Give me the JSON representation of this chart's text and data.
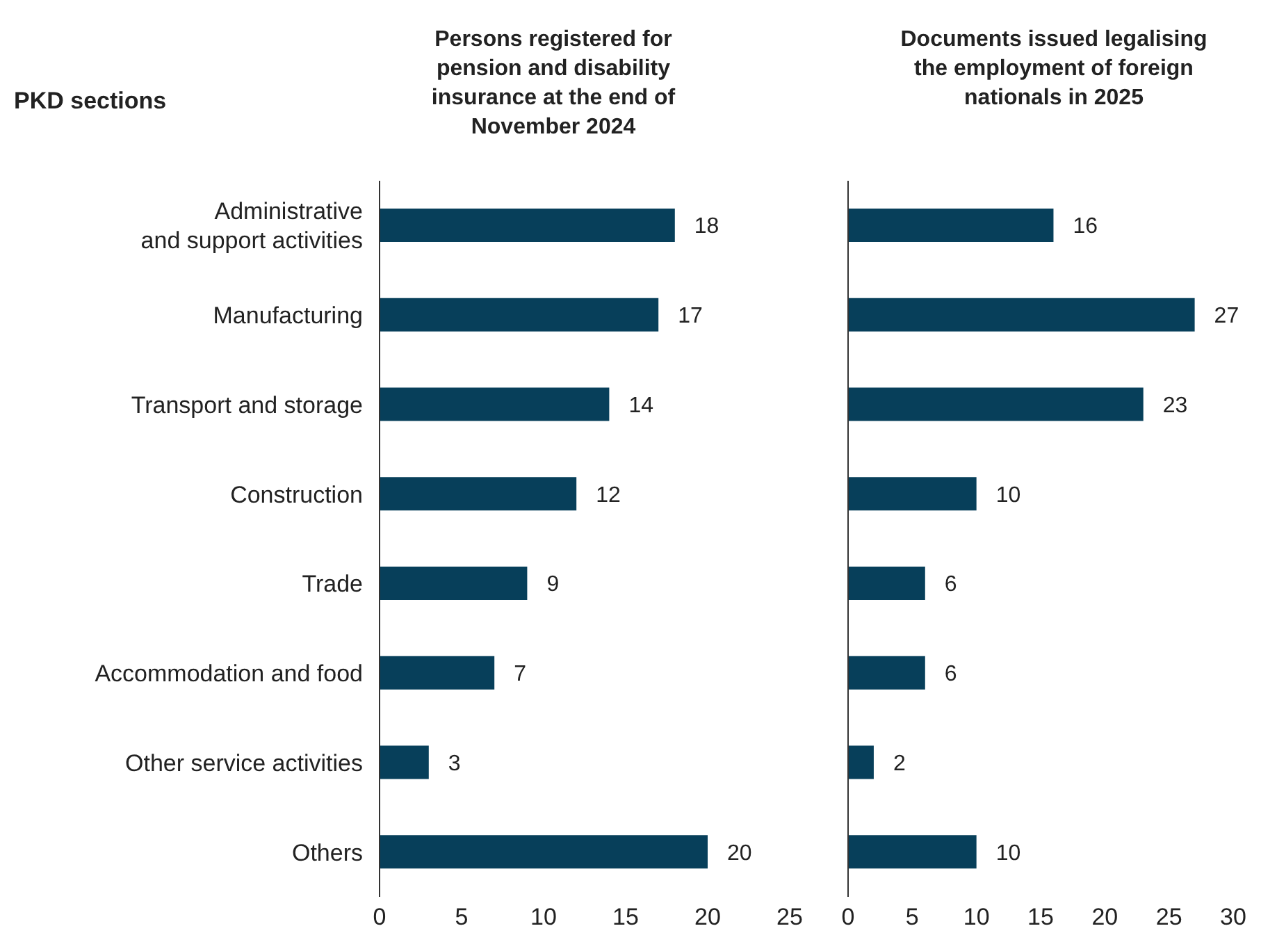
{
  "chart_data": [
    {
      "type": "bar",
      "orientation": "horizontal",
      "title": "Persons registered for pension and disability insurance at the end of November 2024",
      "ylabel": "PKD sections",
      "categories": [
        "Administrative and support activities",
        "Manufacturing",
        "Transport and storage",
        "Construction",
        "Trade",
        "Accommodation and food",
        "Other service activities",
        "Others"
      ],
      "values": [
        18,
        17,
        14,
        12,
        9,
        7,
        3,
        20
      ],
      "color": "#073f5a",
      "xlim": [
        0,
        25
      ],
      "xticks": [
        0,
        5,
        10,
        15,
        20,
        25
      ],
      "data_labels": true
    },
    {
      "type": "bar",
      "orientation": "horizontal",
      "title": "Documents issued legalising the employment of foreign nationals in 2025",
      "categories": [
        null,
        null,
        null,
        null,
        null,
        null,
        null,
        null
      ],
      "values": [
        16,
        27,
        23,
        10,
        6,
        6,
        2,
        10
      ],
      "color": "#073f5a",
      "xlim": [
        0,
        30
      ],
      "xticks": [
        0,
        5,
        10,
        15,
        20,
        25,
        30
      ],
      "data_labels": true
    }
  ]
}
